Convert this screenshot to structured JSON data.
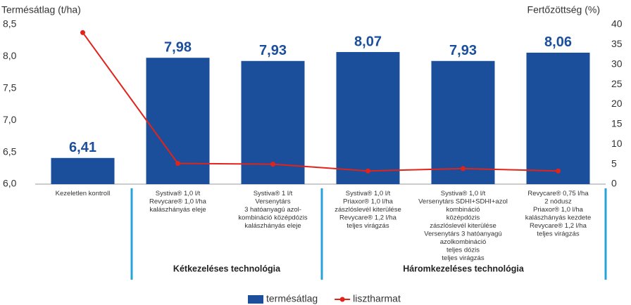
{
  "chart_data": {
    "type": "bar",
    "y_axis_label": "Termésátlag (t/ha)",
    "y2_axis_label": "Fertőzöttség (%)",
    "categories": [
      [
        "Kezeletlen kontroll"
      ],
      [
        "Systiva® 1,0 l/t",
        "Revycare® 1,0 l/ha",
        "kalászhányás eleje"
      ],
      [
        "Systiva® 1 l/t",
        "Versenytárs",
        "3 hatóanyagú azol-",
        "kombináció középdózis",
        "kalászhányás eleje"
      ],
      [
        "Systiva® 1,0 l/t",
        "Priaxor® 1,0 l/ha",
        "zászlóslevél kiterülése",
        "Revycare® 1,2 l/ha",
        "teljes virágzás"
      ],
      [
        "Systiva® 1,0 l/t",
        "Versenytárs SDHI+SDHI+azol",
        "kombináció",
        "középdózis",
        "zászlóslevél kiterülése",
        "Versenytárs 3 hatóanyagú",
        "azolkombináció",
        "teljes dózis",
        "teljes virágzás"
      ],
      [
        "Revycare® 0,75 l/ha",
        "2 nódusz",
        "Priaxor® 1,0 l/ha",
        "kalászhányás kezdete",
        "Revycare® 1,2 l/ha",
        "teljes virágzás"
      ]
    ],
    "groups": [
      "Kétkezeléses technológia",
      "Háromkezeléses technológia"
    ],
    "series": [
      {
        "name": "termésátlag",
        "type": "bar",
        "color": "#1b4f9b",
        "values": [
          6.41,
          7.98,
          7.93,
          8.07,
          7.93,
          8.06
        ],
        "value_labels": [
          "6,41",
          "7,98",
          "7,93",
          "8,07",
          "7,93",
          "8,06"
        ]
      },
      {
        "name": "lisztharmat",
        "type": "line",
        "axis": "y2",
        "color": "#e2231a",
        "values": [
          38,
          5.2,
          5,
          3.3,
          3.9,
          3.3
        ]
      }
    ],
    "ylim": [
      6.0,
      8.5
    ],
    "yticks": [
      {
        "value": 6.0,
        "label": "6,0"
      },
      {
        "value": 6.5,
        "label": "6,5"
      },
      {
        "value": 7.0,
        "label": "7,0"
      },
      {
        "value": 7.5,
        "label": "7,5"
      },
      {
        "value": 8.0,
        "label": "8,0"
      },
      {
        "value": 8.5,
        "label": "8,5"
      }
    ],
    "y2lim": [
      0,
      40
    ],
    "y2ticks": [
      0,
      5,
      10,
      15,
      20,
      25,
      30,
      35,
      40
    ],
    "grid": false,
    "legend": "bottom"
  }
}
